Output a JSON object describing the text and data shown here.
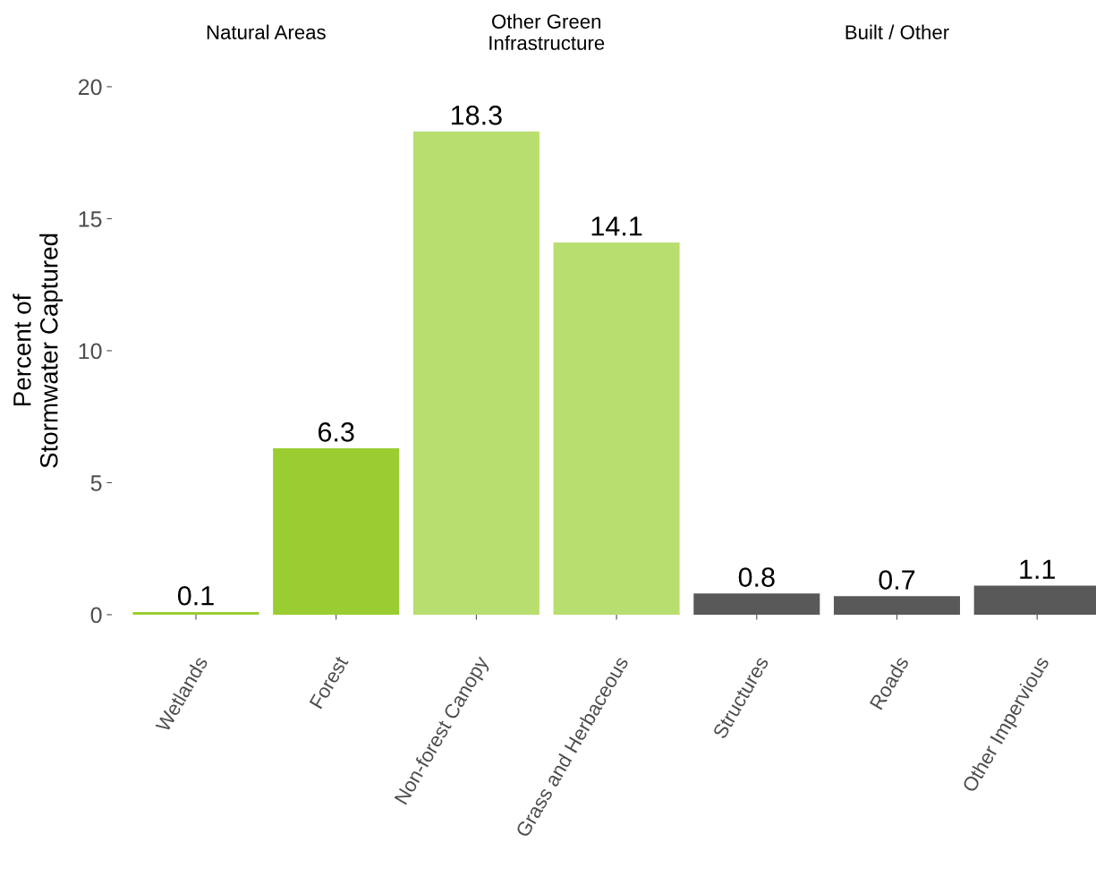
{
  "chart_data": {
    "type": "bar",
    "ylabel": "Percent of\nStormwater Captured",
    "categories": [
      "Wetlands",
      "Forest",
      "Non-forest Canopy",
      "Grass and Herbaceous",
      "Structures",
      "Roads",
      "Other Impervious"
    ],
    "values": [
      0.1,
      6.3,
      18.3,
      14.1,
      0.8,
      0.7,
      1.1
    ],
    "colors": [
      "#9acd32",
      "#9acd32",
      "#b8de6f",
      "#b8de6f",
      "#595959",
      "#595959",
      "#595959"
    ],
    "ylim": [
      0,
      20
    ],
    "yticks": [
      0,
      5,
      10,
      15,
      20
    ],
    "grid": false,
    "data_labels": true,
    "annotations": [
      "Natural Areas",
      "Other Green\nInfrastructure",
      "Built / Other"
    ]
  }
}
